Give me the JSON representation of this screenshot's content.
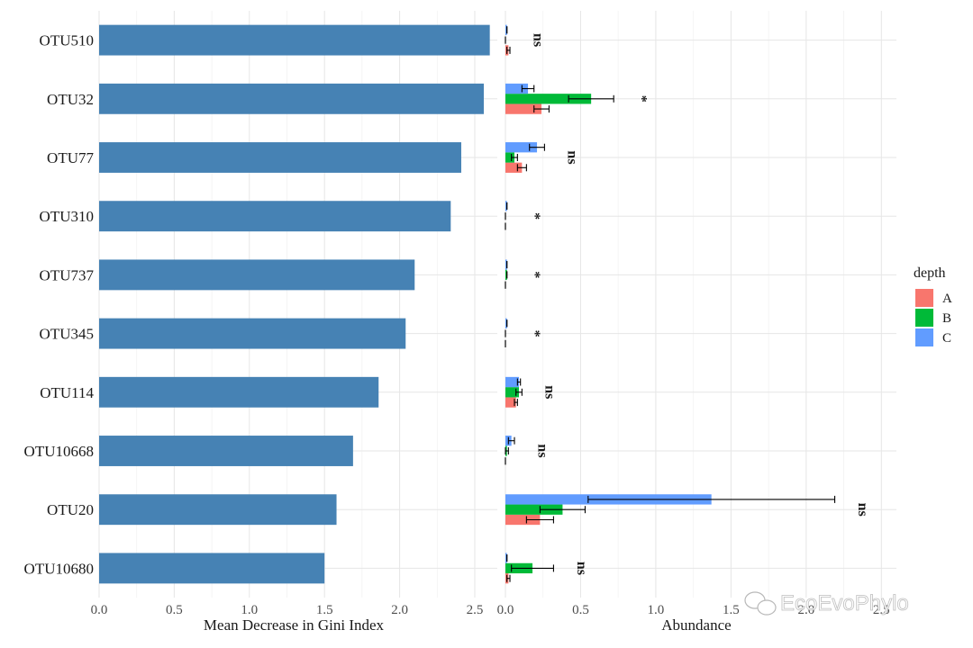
{
  "chart_data": [
    {
      "type": "bar",
      "orientation": "horizontal",
      "xlabel": "Mean Decrease in Gini Index",
      "xlim": [
        0,
        2.65
      ],
      "xticks": [
        "0.0",
        "0.5",
        "1.0",
        "1.5",
        "2.0",
        "2.5"
      ],
      "categories": [
        "OTU510",
        "OTU32",
        "OTU77",
        "OTU310",
        "OTU737",
        "OTU345",
        "OTU114",
        "OTU10668",
        "OTU20",
        "OTU10680"
      ],
      "values": [
        2.6,
        2.56,
        2.41,
        2.34,
        2.1,
        2.04,
        1.86,
        1.69,
        1.58,
        1.5
      ],
      "color": "#4682B4",
      "grid": true
    },
    {
      "type": "bar",
      "orientation": "horizontal",
      "xlabel": "Abundance",
      "xlim": [
        0,
        2.6
      ],
      "xticks": [
        "0.0",
        "0.5",
        "1.0",
        "1.5",
        "2.0",
        "2.5"
      ],
      "legend_title": "depth",
      "legend_position": "right",
      "categories": [
        "OTU510",
        "OTU32",
        "OTU77",
        "OTU310",
        "OTU737",
        "OTU345",
        "OTU114",
        "OTU10668",
        "OTU20",
        "OTU10680"
      ],
      "series": [
        {
          "name": "A",
          "color": "#F8766D",
          "values": [
            0.02,
            0.24,
            0.11,
            0.0,
            0.0,
            0.0,
            0.07,
            0.0,
            0.23,
            0.02
          ],
          "errors": [
            0.01,
            0.05,
            0.03,
            0.0,
            0.0,
            0.0,
            0.01,
            0.0,
            0.09,
            0.01
          ]
        },
        {
          "name": "B",
          "color": "#00BA38",
          "values": [
            0.0,
            0.57,
            0.06,
            0.0,
            0.01,
            0.0,
            0.09,
            0.01,
            0.38,
            0.18
          ],
          "errors": [
            0.0,
            0.15,
            0.02,
            0.0,
            0.0,
            0.0,
            0.02,
            0.01,
            0.15,
            0.14
          ]
        },
        {
          "name": "C",
          "color": "#619CFF",
          "values": [
            0.01,
            0.15,
            0.21,
            0.01,
            0.01,
            0.01,
            0.09,
            0.04,
            1.37,
            0.01
          ],
          "errors": [
            0.0,
            0.04,
            0.05,
            0.0,
            0.0,
            0.0,
            0.01,
            0.02,
            0.82,
            0.0
          ]
        }
      ],
      "significance": [
        "ns",
        "*",
        "ns",
        "*",
        "*",
        "*",
        "ns",
        "ns",
        "ns",
        "ns"
      ],
      "grid": true
    }
  ],
  "watermark": "EcoEvoPhylo"
}
